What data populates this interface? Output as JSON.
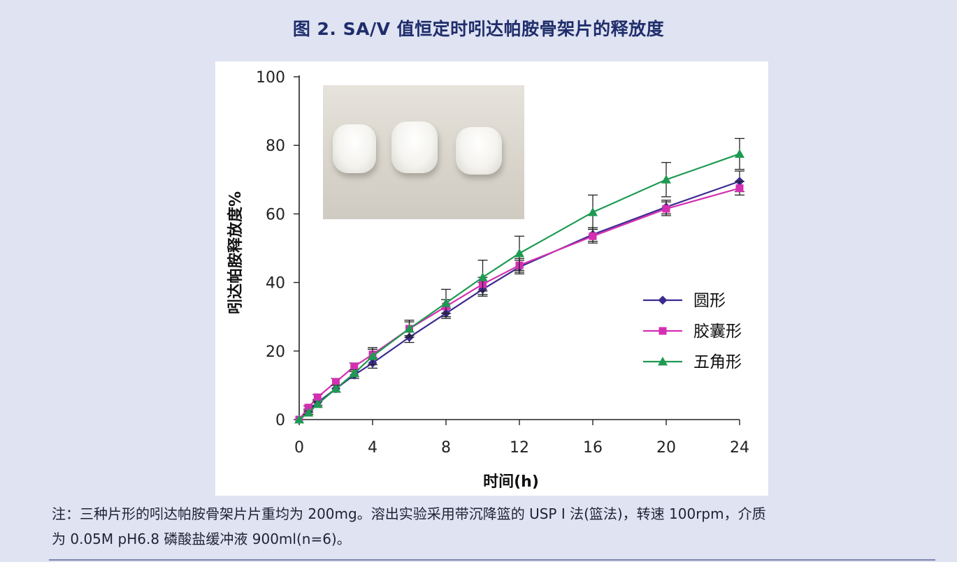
{
  "header": {
    "title": "图 2.   SA/V 值恒定时吲达帕胺骨架片的释放度"
  },
  "note": {
    "line1": "注：三种片形的吲达帕胺骨架片片重均为 200mg。溶出实验采用带沉降篮的 USP I 法(篮法)，转速 100rpm，介质",
    "line2": "为 0.05M pH6.8 磷酸盐缓冲液 900ml(n=6)。"
  },
  "chart_data": {
    "type": "line",
    "title": "",
    "xlabel": "时间(h)",
    "ylabel": "吲达帕胺释放度%",
    "xlim": [
      0,
      24
    ],
    "ylim": [
      0,
      100
    ],
    "xticks": [
      0,
      4,
      8,
      12,
      16,
      20,
      24
    ],
    "yticks": [
      0,
      20,
      40,
      60,
      80,
      100
    ],
    "grid": false,
    "legend_position": "right",
    "inset": "photo of three tablets",
    "series": [
      {
        "name": "圆形",
        "color": "#3b2a8f",
        "marker": "diamond",
        "x": [
          0,
          0.5,
          1,
          2,
          3,
          4,
          6,
          8,
          10,
          12,
          16,
          20,
          24
        ],
        "y": [
          0,
          2.5,
          5,
          9,
          13,
          16.5,
          24,
          31,
          38,
          44.5,
          54,
          62,
          69.5
        ],
        "err": [
          0,
          0.5,
          0.8,
          1,
          1,
          1.5,
          1.5,
          1.5,
          2,
          2,
          2,
          2,
          3
        ]
      },
      {
        "name": "胶囊形",
        "color": "#d42fb2",
        "marker": "square",
        "x": [
          0,
          0.5,
          1,
          2,
          3,
          4,
          6,
          8,
          10,
          12,
          16,
          20,
          24
        ],
        "y": [
          0,
          3.5,
          6.5,
          11,
          15.5,
          19,
          26.5,
          33,
          39.5,
          45,
          53.5,
          61.5,
          67.5
        ],
        "err": [
          0,
          0.5,
          0.8,
          1,
          1,
          1.5,
          2,
          2,
          2,
          2,
          2,
          2,
          2
        ]
      },
      {
        "name": "五角形",
        "color": "#1e9a52",
        "marker": "triangle",
        "x": [
          0,
          0.5,
          1,
          2,
          3,
          4,
          6,
          8,
          10,
          12,
          16,
          20,
          24
        ],
        "y": [
          0,
          2,
          4.5,
          9,
          13.5,
          18.5,
          26.5,
          34,
          41.5,
          48.5,
          60.5,
          70,
          77.5
        ],
        "err": [
          0,
          0.5,
          0.8,
          1,
          1,
          2.5,
          2.5,
          4,
          5,
          5,
          5,
          5,
          4.5
        ]
      }
    ]
  }
}
